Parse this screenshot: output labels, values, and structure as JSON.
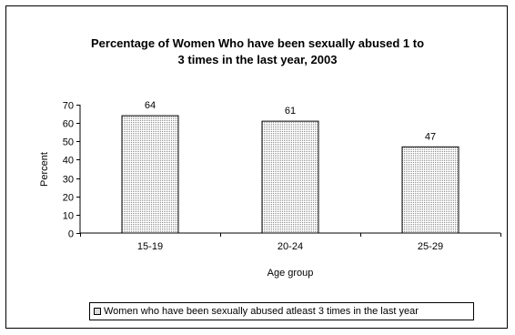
{
  "chart_data": {
    "type": "bar",
    "title_lines": [
      "Percentage of Women Who have been sexually abused 1 to",
      "3  times in the last year, 2003"
    ],
    "xlabel": "Age group",
    "ylabel": "Percent",
    "categories": [
      "15-19",
      "20-24",
      "25-29"
    ],
    "series": [
      {
        "name": "Women who have been sexually abused atleast 3 times in the last year",
        "values": [
          64,
          61,
          47
        ]
      }
    ],
    "data_labels": [
      "64",
      "61",
      "47"
    ],
    "ylim": [
      0,
      70
    ],
    "yticks": [
      0,
      10,
      20,
      30,
      40,
      50,
      60,
      70
    ],
    "grid": false,
    "legend_position": "bottom",
    "bar_fill": "#ffffff",
    "bar_pattern_color": "#777777",
    "axis_color": "#000000"
  }
}
